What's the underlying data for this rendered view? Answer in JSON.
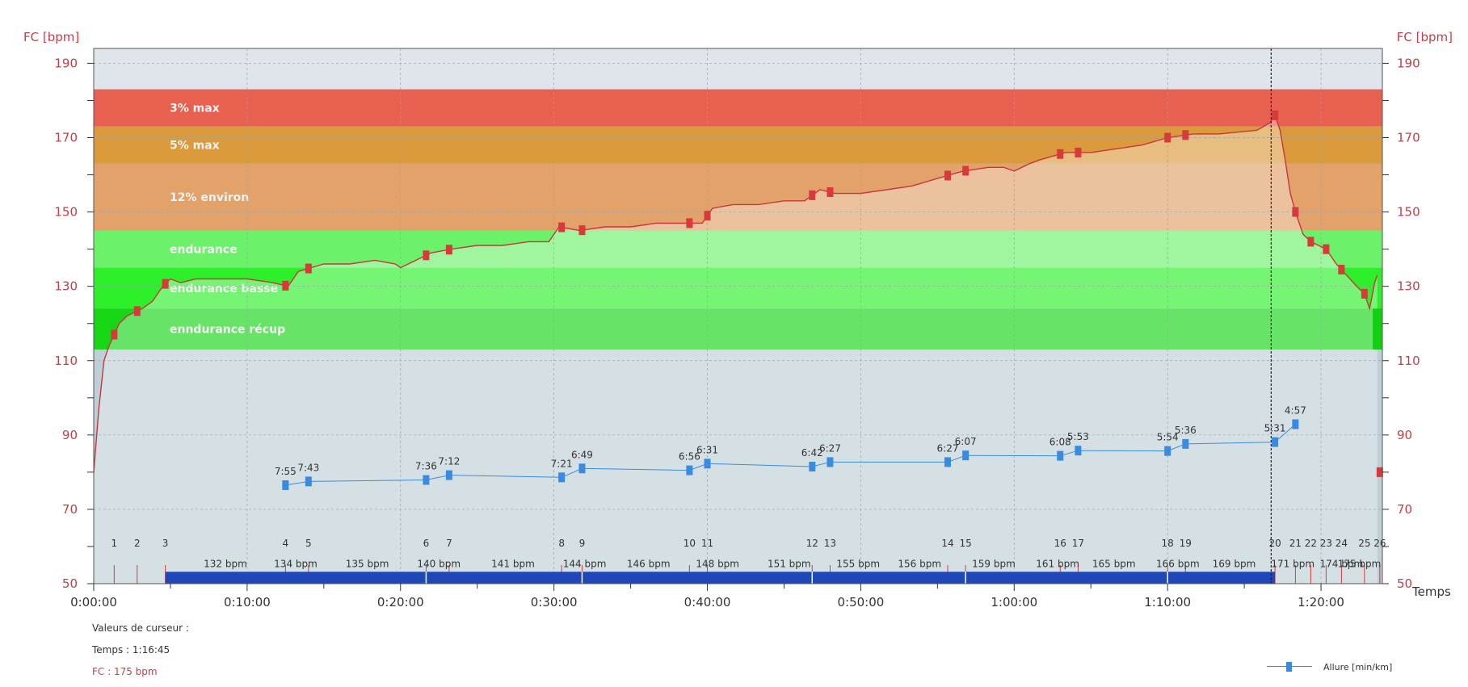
{
  "chart_data": {
    "type": "line",
    "y_axis_label_left": "FC [bpm]",
    "y_axis_label_right": "FC [bpm]",
    "x_axis_label": "Temps",
    "ylim": [
      50,
      194
    ],
    "xlim_seconds": [
      0,
      5040
    ],
    "y_ticks": [
      50,
      70,
      90,
      110,
      130,
      150,
      170,
      190
    ],
    "x_ticks": [
      {
        "t": 0,
        "label": "0:00:00"
      },
      {
        "t": 600,
        "label": "0:10:00"
      },
      {
        "t": 1200,
        "label": "0:20:00"
      },
      {
        "t": 1800,
        "label": "0:30:00"
      },
      {
        "t": 2400,
        "label": "0:40:00"
      },
      {
        "t": 3000,
        "label": "0:50:00"
      },
      {
        "t": 3600,
        "label": "1:00:00"
      },
      {
        "t": 4200,
        "label": "1:10:00"
      },
      {
        "t": 4800,
        "label": "1:20:00"
      }
    ],
    "zones": [
      {
        "label": "3% max",
        "from": 173,
        "to": 183,
        "color": "#e8604f"
      },
      {
        "label": "5% max",
        "from": 163,
        "to": 173,
        "color": "#db9a3c"
      },
      {
        "label": "12% environ",
        "from": 145,
        "to": 163,
        "color": "#e2a26a"
      },
      {
        "label": "endurance",
        "from": 135,
        "to": 145,
        "color": "#6cf26a"
      },
      {
        "label": "endurance basse",
        "from": 124,
        "to": 135,
        "color": "#2df02b"
      },
      {
        "label": "enndurance récup",
        "from": 113,
        "to": 124,
        "color": "#16d616"
      }
    ],
    "hr_series": {
      "name": "FC",
      "color": "#c8363c",
      "points": [
        [
          0,
          80
        ],
        [
          20,
          97
        ],
        [
          40,
          110
        ],
        [
          60,
          114
        ],
        [
          80,
          117
        ],
        [
          100,
          120
        ],
        [
          130,
          122
        ],
        [
          160,
          123
        ],
        [
          190,
          124
        ],
        [
          230,
          126
        ],
        [
          270,
          130
        ],
        [
          300,
          132
        ],
        [
          340,
          131
        ],
        [
          400,
          132
        ],
        [
          500,
          132
        ],
        [
          600,
          132
        ],
        [
          700,
          131
        ],
        [
          760,
          130
        ],
        [
          800,
          134
        ],
        [
          900,
          136
        ],
        [
          1000,
          136
        ],
        [
          1100,
          137
        ],
        [
          1180,
          136
        ],
        [
          1200,
          135
        ],
        [
          1320,
          139
        ],
        [
          1400,
          140
        ],
        [
          1500,
          141
        ],
        [
          1600,
          141
        ],
        [
          1700,
          142
        ],
        [
          1780,
          142
        ],
        [
          1820,
          146
        ],
        [
          1900,
          145
        ],
        [
          2000,
          146
        ],
        [
          2100,
          146
        ],
        [
          2200,
          147
        ],
        [
          2300,
          147
        ],
        [
          2380,
          147
        ],
        [
          2420,
          151
        ],
        [
          2500,
          152
        ],
        [
          2600,
          152
        ],
        [
          2700,
          153
        ],
        [
          2780,
          153
        ],
        [
          2840,
          156
        ],
        [
          2900,
          155
        ],
        [
          3000,
          155
        ],
        [
          3100,
          156
        ],
        [
          3200,
          157
        ],
        [
          3300,
          159
        ],
        [
          3400,
          161
        ],
        [
          3500,
          162
        ],
        [
          3560,
          162
        ],
        [
          3600,
          161
        ],
        [
          3660,
          163
        ],
        [
          3700,
          164
        ],
        [
          3800,
          166
        ],
        [
          3900,
          166
        ],
        [
          4000,
          167
        ],
        [
          4100,
          168
        ],
        [
          4200,
          170
        ],
        [
          4300,
          171
        ],
        [
          4400,
          171
        ],
        [
          4550,
          172
        ],
        [
          4600,
          174
        ],
        [
          4620,
          176
        ],
        [
          4640,
          172
        ],
        [
          4660,
          164
        ],
        [
          4680,
          155
        ],
        [
          4700,
          150
        ],
        [
          4730,
          144
        ],
        [
          4760,
          142
        ],
        [
          4790,
          141
        ],
        [
          4820,
          140
        ],
        [
          4860,
          136
        ],
        [
          4900,
          133
        ],
        [
          4940,
          130
        ],
        [
          4970,
          128
        ],
        [
          4990,
          124
        ],
        [
          5010,
          131
        ],
        [
          5020,
          133
        ]
      ]
    },
    "pace_series": {
      "name": "Allure [min/km]",
      "color": "#3a8be0",
      "points": [
        {
          "t": 750,
          "label": "7:55",
          "y": 76.5
        },
        {
          "t": 840,
          "label": "7:43",
          "y": 77.5
        },
        {
          "t": 1300,
          "label": "7:36",
          "y": 77.9
        },
        {
          "t": 1390,
          "label": "7:12",
          "y": 79.2
        },
        {
          "t": 1830,
          "label": "7:21",
          "y": 78.6
        },
        {
          "t": 1910,
          "label": "6:49",
          "y": 81.0
        },
        {
          "t": 2330,
          "label": "6:56",
          "y": 80.5
        },
        {
          "t": 2400,
          "label": "6:31",
          "y": 82.3
        },
        {
          "t": 2810,
          "label": "6:42",
          "y": 81.5
        },
        {
          "t": 2880,
          "label": "6:27",
          "y": 82.7
        },
        {
          "t": 3340,
          "label": "6:27",
          "y": 82.7
        },
        {
          "t": 3410,
          "label": "6:07",
          "y": 84.5
        },
        {
          "t": 3780,
          "label": "6:08",
          "y": 84.4
        },
        {
          "t": 3850,
          "label": "5:53",
          "y": 85.8
        },
        {
          "t": 4200,
          "label": "5:54",
          "y": 85.7
        },
        {
          "t": 4270,
          "label": "5:36",
          "y": 87.6
        },
        {
          "t": 4620,
          "label": "5:31",
          "y": 88.1
        },
        {
          "t": 4700,
          "label": "4:57",
          "y": 92.9
        }
      ]
    },
    "laps": [
      {
        "n": "1",
        "t": 80
      },
      {
        "n": "2",
        "t": 170
      },
      {
        "n": "3",
        "t": 280
      },
      {
        "n": "4",
        "t": 750
      },
      {
        "n": "5",
        "t": 840
      },
      {
        "n": "6",
        "t": 1300
      },
      {
        "n": "7",
        "t": 1390
      },
      {
        "n": "8",
        "t": 1830
      },
      {
        "n": "9",
        "t": 1910
      },
      {
        "n": "10",
        "t": 2330
      },
      {
        "n": "11",
        "t": 2400
      },
      {
        "n": "12",
        "t": 2810
      },
      {
        "n": "13",
        "t": 2880
      },
      {
        "n": "14",
        "t": 3340
      },
      {
        "n": "15",
        "t": 3410
      },
      {
        "n": "16",
        "t": 3780
      },
      {
        "n": "17",
        "t": 3850
      },
      {
        "n": "18",
        "t": 4200
      },
      {
        "n": "19",
        "t": 4270
      },
      {
        "n": "20",
        "t": 4620
      },
      {
        "n": "21",
        "t": 4700
      },
      {
        "n": "22",
        "t": 4760
      },
      {
        "n": "23",
        "t": 4820
      },
      {
        "n": "24",
        "t": 4880
      },
      {
        "n": "25",
        "t": 4970
      },
      {
        "n": "26",
        "t": 5030
      }
    ],
    "segment_bpm": [
      {
        "t": 515,
        "label": "132 bpm"
      },
      {
        "t": 790,
        "label": "134 bpm"
      },
      {
        "t": 1070,
        "label": "135 bpm"
      },
      {
        "t": 1350,
        "label": "140 bpm"
      },
      {
        "t": 1640,
        "label": "141 bpm"
      },
      {
        "t": 1920,
        "label": "144 bpm"
      },
      {
        "t": 2170,
        "label": "146 bpm"
      },
      {
        "t": 2440,
        "label": "148 bpm"
      },
      {
        "t": 2720,
        "label": "151 bpm"
      },
      {
        "t": 2990,
        "label": "155 bpm"
      },
      {
        "t": 3230,
        "label": "156 bpm"
      },
      {
        "t": 3520,
        "label": "159 bpm"
      },
      {
        "t": 3770,
        "label": "161 bpm"
      },
      {
        "t": 3990,
        "label": "165 bpm"
      },
      {
        "t": 4240,
        "label": "166 bpm"
      },
      {
        "t": 4460,
        "label": "169 bpm"
      },
      {
        "t": 4690,
        "label": "171 bpm"
      },
      {
        "t": 4880,
        "label": "174 bpm"
      },
      {
        "t": 4950,
        "label": "175 bpm"
      }
    ],
    "bar": {
      "from": 280,
      "to": 4620,
      "color": "#1f47b8"
    },
    "cursor_t": 4605
  },
  "cursor": {
    "title": "Valeurs de curseur :",
    "time": "Temps : 1:16:45",
    "fc": "FC : 175 bpm"
  },
  "legend": {
    "label": "Allure [min/km]"
  }
}
